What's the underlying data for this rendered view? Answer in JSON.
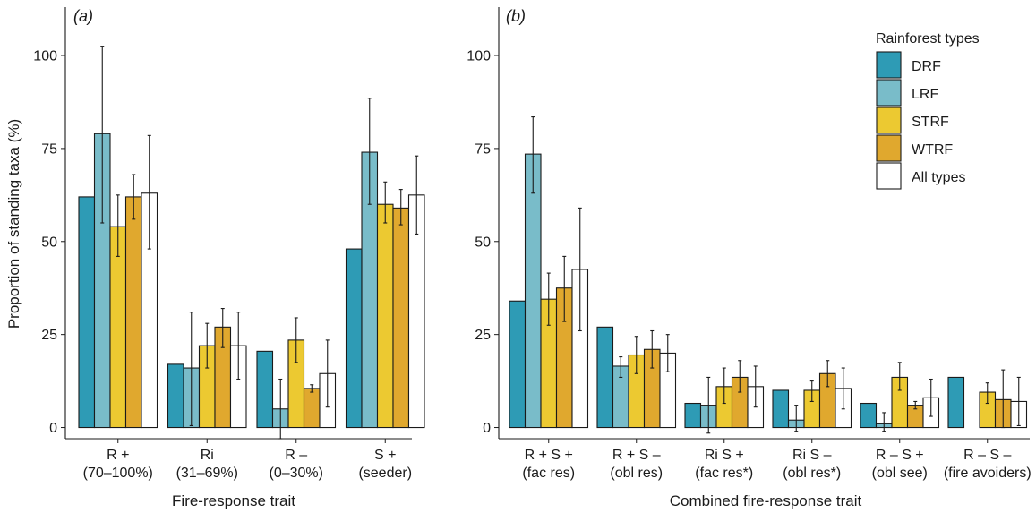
{
  "ylabel": "Proportion of standing taxa (%)",
  "legend": {
    "title": "Rainforest types",
    "colors": [
      "#2e9bb5",
      "#79bcc9",
      "#ecc931",
      "#e0a82e",
      "#ffffff"
    ]
  },
  "chart_data": [
    {
      "type": "bar",
      "panel": "(a)",
      "xlabel": "Fire-response trait",
      "ylabel": "Proportion of standing taxa (%)",
      "ylim": [
        -3,
        113
      ],
      "yticks": [
        0,
        25,
        50,
        75,
        100
      ],
      "categories": [
        {
          "line1": "R +",
          "line2": "(70–100%)"
        },
        {
          "line1": "Ri",
          "line2": "(31–69%)"
        },
        {
          "line1": "R –",
          "line2": "(0–30%)"
        },
        {
          "line1": "S +",
          "line2": "(seeder)"
        }
      ],
      "series": [
        {
          "name": "DRF",
          "values": [
            62,
            17,
            20.5,
            48
          ],
          "err_low": [
            null,
            null,
            null,
            null
          ],
          "err_high": [
            null,
            null,
            null,
            null
          ]
        },
        {
          "name": "LRF",
          "values": [
            79,
            16,
            5,
            74
          ],
          "err_low": [
            55,
            0.5,
            -3,
            60
          ],
          "err_high": [
            102.5,
            31,
            13,
            88.5
          ]
        },
        {
          "name": "STRF",
          "values": [
            54,
            22,
            23.5,
            60
          ],
          "err_low": [
            46,
            16,
            17.5,
            55
          ],
          "err_high": [
            62.5,
            28,
            29.5,
            66
          ]
        },
        {
          "name": "WTRF",
          "values": [
            62,
            27,
            10.5,
            59
          ],
          "err_low": [
            56,
            21.5,
            9.5,
            54.5
          ],
          "err_high": [
            68,
            32,
            11.5,
            64
          ]
        },
        {
          "name": "All types",
          "values": [
            63,
            22,
            14.5,
            62.5
          ],
          "err_low": [
            48,
            13,
            5.5,
            52
          ],
          "err_high": [
            78.5,
            31,
            23.5,
            73
          ]
        }
      ]
    },
    {
      "type": "bar",
      "panel": "(b)",
      "xlabel": "Combined fire-response trait",
      "ylim": [
        -3,
        113
      ],
      "yticks": [
        0,
        25,
        50,
        75,
        100
      ],
      "categories": [
        {
          "line1": "R + S +",
          "line2": "(fac res)"
        },
        {
          "line1": "R + S –",
          "line2": "(obl res)"
        },
        {
          "line1": "Ri S +",
          "line2": "(fac res*)"
        },
        {
          "line1": "Ri S –",
          "line2": "(obl res*)"
        },
        {
          "line1": "R – S +",
          "line2": "(obl see)"
        },
        {
          "line1": "R – S –",
          "line2": "(fire avoiders)"
        }
      ],
      "series": [
        {
          "name": "DRF",
          "values": [
            34,
            27,
            6.5,
            10,
            6.5,
            13.5
          ],
          "err_low": [
            null,
            null,
            null,
            null,
            null,
            null
          ],
          "err_high": [
            null,
            null,
            null,
            null,
            null,
            null
          ]
        },
        {
          "name": "LRF",
          "values": [
            73.5,
            16.5,
            6,
            2,
            1,
            0
          ],
          "err_low": [
            63,
            13.5,
            -1.5,
            -1,
            -1,
            null
          ],
          "err_high": [
            83.5,
            19,
            13.5,
            6,
            4,
            null
          ]
        },
        {
          "name": "STRF",
          "values": [
            34.5,
            19.5,
            11,
            10,
            13.5,
            9.5
          ],
          "err_low": [
            27.5,
            14.5,
            6.5,
            7,
            10,
            6.5
          ],
          "err_high": [
            41.5,
            24.5,
            16,
            12.5,
            17.5,
            12
          ],
          "hide_zero": false
        },
        {
          "name": "WTRF",
          "values": [
            37.5,
            21,
            13.5,
            14.5,
            6,
            7.5
          ],
          "err_low": [
            28.5,
            16,
            9.5,
            11,
            5,
            0
          ],
          "err_high": [
            46,
            26,
            18,
            18,
            7,
            15.5
          ]
        },
        {
          "name": "All types",
          "values": [
            42.5,
            20,
            11,
            10.5,
            8,
            7
          ],
          "err_low": [
            26,
            15,
            5.5,
            5,
            3,
            0.5
          ],
          "err_high": [
            59,
            25,
            16.5,
            16,
            13,
            13.5
          ]
        }
      ]
    }
  ]
}
